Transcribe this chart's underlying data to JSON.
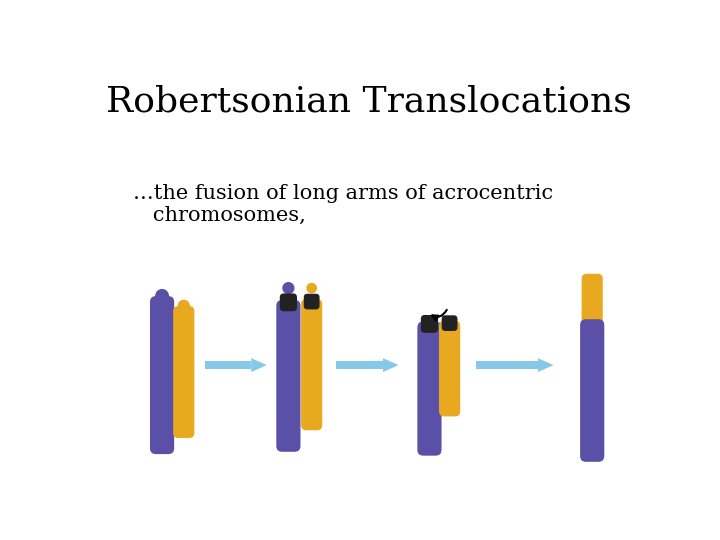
{
  "title": "Robertsonian Translocations",
  "subtitle": "…the fusion of long arms of acrocentric\n   chromosomes,",
  "bg_color": "#ffffff",
  "purple_color": "#5B50A8",
  "yellow_color": "#E8A820",
  "dark_cap_color": "#222222",
  "arrow_color": "#85C8E8",
  "title_fontsize": 26,
  "subtitle_fontsize": 15,
  "fig_width": 7.2,
  "fig_height": 5.4,
  "dpi": 100
}
